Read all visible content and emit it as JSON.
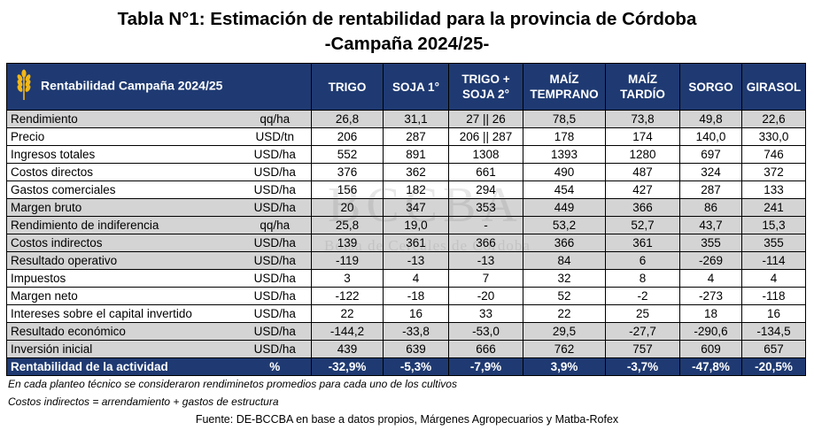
{
  "title_line1": "Tabla N°1: Estimación de rentabilidad para la provincia de Córdoba",
  "title_line2": "-Campaña 2024/25-",
  "header": {
    "label": "Rentabilidad Campaña 2024/25",
    "columns": [
      "TRIGO",
      "SOJA 1°",
      "TRIGO + SOJA 2°",
      "MAÍZ TEMPRANO",
      "MAÍZ TARDÍO",
      "SORGO",
      "GIRASOL"
    ]
  },
  "rows": [
    {
      "label": "Rendimiento",
      "unit": "qq/ha",
      "values": [
        "26,8",
        "31,1",
        "27 || 26",
        "78,5",
        "73,8",
        "49,8",
        "22,6"
      ]
    },
    {
      "label": "Precio",
      "unit": "USD/tn",
      "values": [
        "206",
        "287",
        "206 || 287",
        "178",
        "174",
        "140,0",
        "330,0"
      ]
    },
    {
      "label": "Ingresos totales",
      "unit": "USD/ha",
      "values": [
        "552",
        "891",
        "1308",
        "1393",
        "1280",
        "697",
        "746"
      ]
    },
    {
      "label": "Costos directos",
      "unit": "USD/ha",
      "values": [
        "376",
        "362",
        "661",
        "490",
        "487",
        "324",
        "372"
      ]
    },
    {
      "label": "Gastos comerciales",
      "unit": "USD/ha",
      "values": [
        "156",
        "182",
        "294",
        "454",
        "427",
        "287",
        "133"
      ]
    },
    {
      "label": "Margen bruto",
      "unit": "USD/ha",
      "values": [
        "20",
        "347",
        "353",
        "449",
        "366",
        "86",
        "241"
      ]
    },
    {
      "label": "Rendimiento de indiferencia",
      "unit": "qq/ha",
      "values": [
        "25,8",
        "19,0",
        "-",
        "53,2",
        "52,7",
        "43,7",
        "15,3"
      ]
    },
    {
      "label": "Costos indirectos",
      "unit": "USD/ha",
      "values": [
        "139",
        "361",
        "366",
        "366",
        "361",
        "355",
        "355"
      ]
    },
    {
      "label": "Resultado operativo",
      "unit": "USD/ha",
      "values": [
        "-119",
        "-13",
        "-13",
        "84",
        "6",
        "-269",
        "-114"
      ]
    },
    {
      "label": "Impuestos",
      "unit": "USD/ha",
      "values": [
        "3",
        "4",
        "7",
        "32",
        "8",
        "4",
        "4"
      ]
    },
    {
      "label": "Margen neto",
      "unit": "USD/ha",
      "values": [
        "-122",
        "-18",
        "-20",
        "52",
        "-2",
        "-273",
        "-118"
      ]
    },
    {
      "label": "Intereses sobre el capital invertido",
      "unit": "USD/ha",
      "values": [
        "22",
        "16",
        "33",
        "22",
        "25",
        "18",
        "16"
      ]
    },
    {
      "label": "Resultado económico",
      "unit": "USD/ha",
      "values": [
        "-144,2",
        "-33,8",
        "-53,0",
        "29,5",
        "-27,7",
        "-290,6",
        "-134,5"
      ]
    },
    {
      "label": "Inversión inicial",
      "unit": "USD/ha",
      "values": [
        "439",
        "639",
        "666",
        "762",
        "757",
        "609",
        "657"
      ]
    },
    {
      "label": "Rentabilidad de la actividad",
      "unit": "%",
      "values": [
        "-32,9%",
        "-5,3%",
        "-7,9%",
        "3,9%",
        "-3,7%",
        "-47,8%",
        "-20,5%"
      ]
    }
  ],
  "row_styles": [
    "shade",
    "plain",
    "plain",
    "plain",
    "plain",
    "shade",
    "shade",
    "shade",
    "shade",
    "plain",
    "plain",
    "plain",
    "shade",
    "shade",
    "final"
  ],
  "notes": [
    "En cada planteo técnico se consideraron rendiminetos promedios para cada uno de los cultivos",
    "Costos indirectos = arrendamiento + gastos de estructura"
  ],
  "source": "Fuente: DE-BCCBA en base a datos propios, Márgenes Agropecuarios y Matba-Rofex",
  "watermark": {
    "big": "BCCBA",
    "small": "Bolsa de Cereales de Córdoba"
  },
  "colors": {
    "header_bg": "#1f3a72",
    "shade_bg": "#d4d4d4",
    "wheat_icon": "#f2b718"
  },
  "icons": {
    "header": "wheat-icon"
  }
}
